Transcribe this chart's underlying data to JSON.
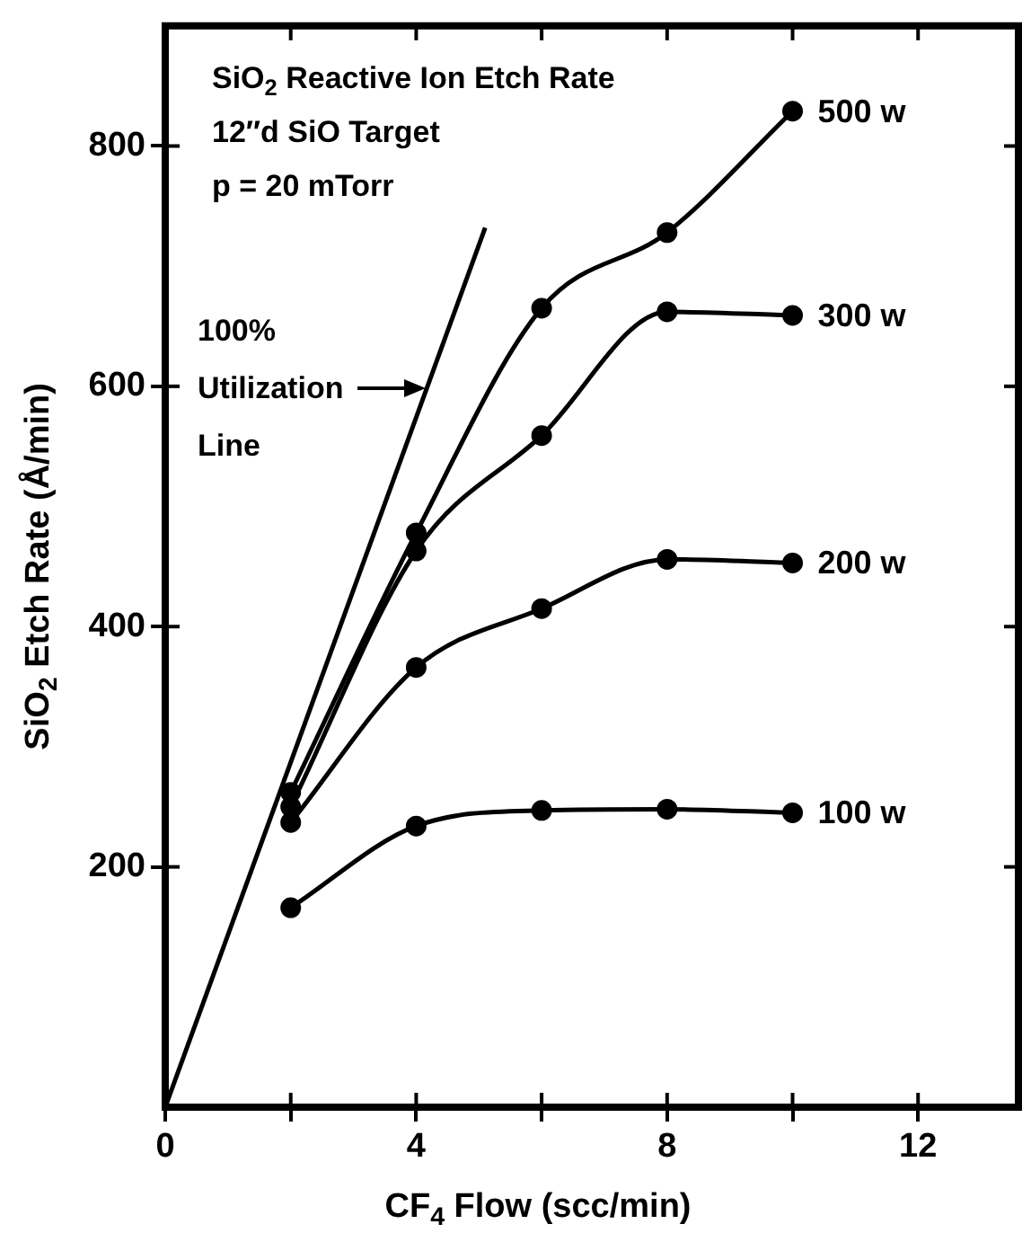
{
  "chart_data": {
    "type": "line",
    "xlabel": "CF$_{4}$ Flow (scc/min)",
    "ylabel": "SiO$_{2}$ Etch Rate (Å/min)",
    "xlim": [
      0,
      13.6
    ],
    "xticks": [
      0,
      {
        "value": 2,
        "label": null
      },
      4,
      {
        "value": 6,
        "label": null
      },
      8,
      {
        "value": 10,
        "label": null
      },
      12
    ],
    "ylim": [
      0,
      900
    ],
    "yticks": [
      200,
      400,
      600,
      800
    ],
    "grid": false,
    "legend": false,
    "marker": "circle",
    "line_style": "solid",
    "series": [
      {
        "name": "500 w",
        "color": "#000000",
        "x": [
          2,
          4,
          6,
          8,
          10
        ],
        "values": [
          262,
          478,
          665,
          728,
          829
        ]
      },
      {
        "name": "300 w",
        "color": "#000000",
        "x": [
          2,
          4,
          6,
          8,
          10
        ],
        "values": [
          250,
          463,
          559,
          662,
          659
        ]
      },
      {
        "name": "200 w",
        "color": "#000000",
        "x": [
          2,
          4,
          6,
          8,
          10
        ],
        "values": [
          237,
          366,
          415,
          456,
          453
        ]
      },
      {
        "name": "100 w",
        "color": "#000000",
        "x": [
          2,
          4,
          6,
          8,
          10
        ],
        "values": [
          166,
          234,
          247,
          248,
          245
        ]
      },
      {
        "color": "#000000",
        "marker": "none",
        "x": [
          0,
          5.1
        ],
        "values": [
          0,
          732
        ]
      }
    ],
    "annotations": [
      "SiO$_{2}$ Reactive Ion Etch Rate",
      "12″d SiO Target",
      "p = 20 mTorr",
      {
        "text": "100%\nUtilization\nLine",
        "x": 4.2,
        "y": 600
      }
    ]
  }
}
